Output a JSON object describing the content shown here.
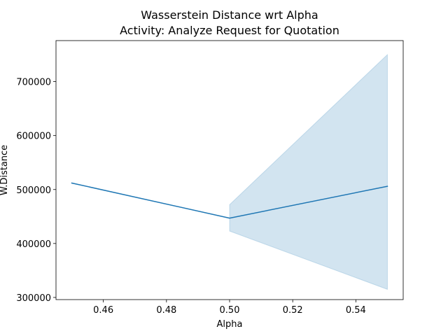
{
  "chart_data": {
    "type": "line",
    "title": "Wasserstein Distance wrt Alpha",
    "subtitle": "Activity: Analyze Request for Quotation",
    "xlabel": "Alpha",
    "ylabel": "W.Distance",
    "xlim": [
      0.445,
      0.555
    ],
    "ylim": [
      296000,
      776000
    ],
    "x_ticks": [
      0.46,
      0.48,
      0.5,
      0.52,
      0.54
    ],
    "x_tick_labels": [
      "0.46",
      "0.48",
      "0.50",
      "0.52",
      "0.54"
    ],
    "y_ticks": [
      300000,
      400000,
      500000,
      600000,
      700000
    ],
    "y_tick_labels": [
      "300000",
      "400000",
      "500000",
      "600000",
      "700000"
    ],
    "grid": false,
    "legend": "none",
    "series": [
      {
        "x": [
          0.45,
          0.5,
          0.55
        ],
        "y": [
          512000,
          447000,
          506000
        ],
        "band_lower": [
          512000,
          423000,
          315000
        ],
        "band_upper": [
          512000,
          472000,
          750000
        ],
        "color": "#1f77b4",
        "band_color": "#1f77b4"
      }
    ]
  }
}
